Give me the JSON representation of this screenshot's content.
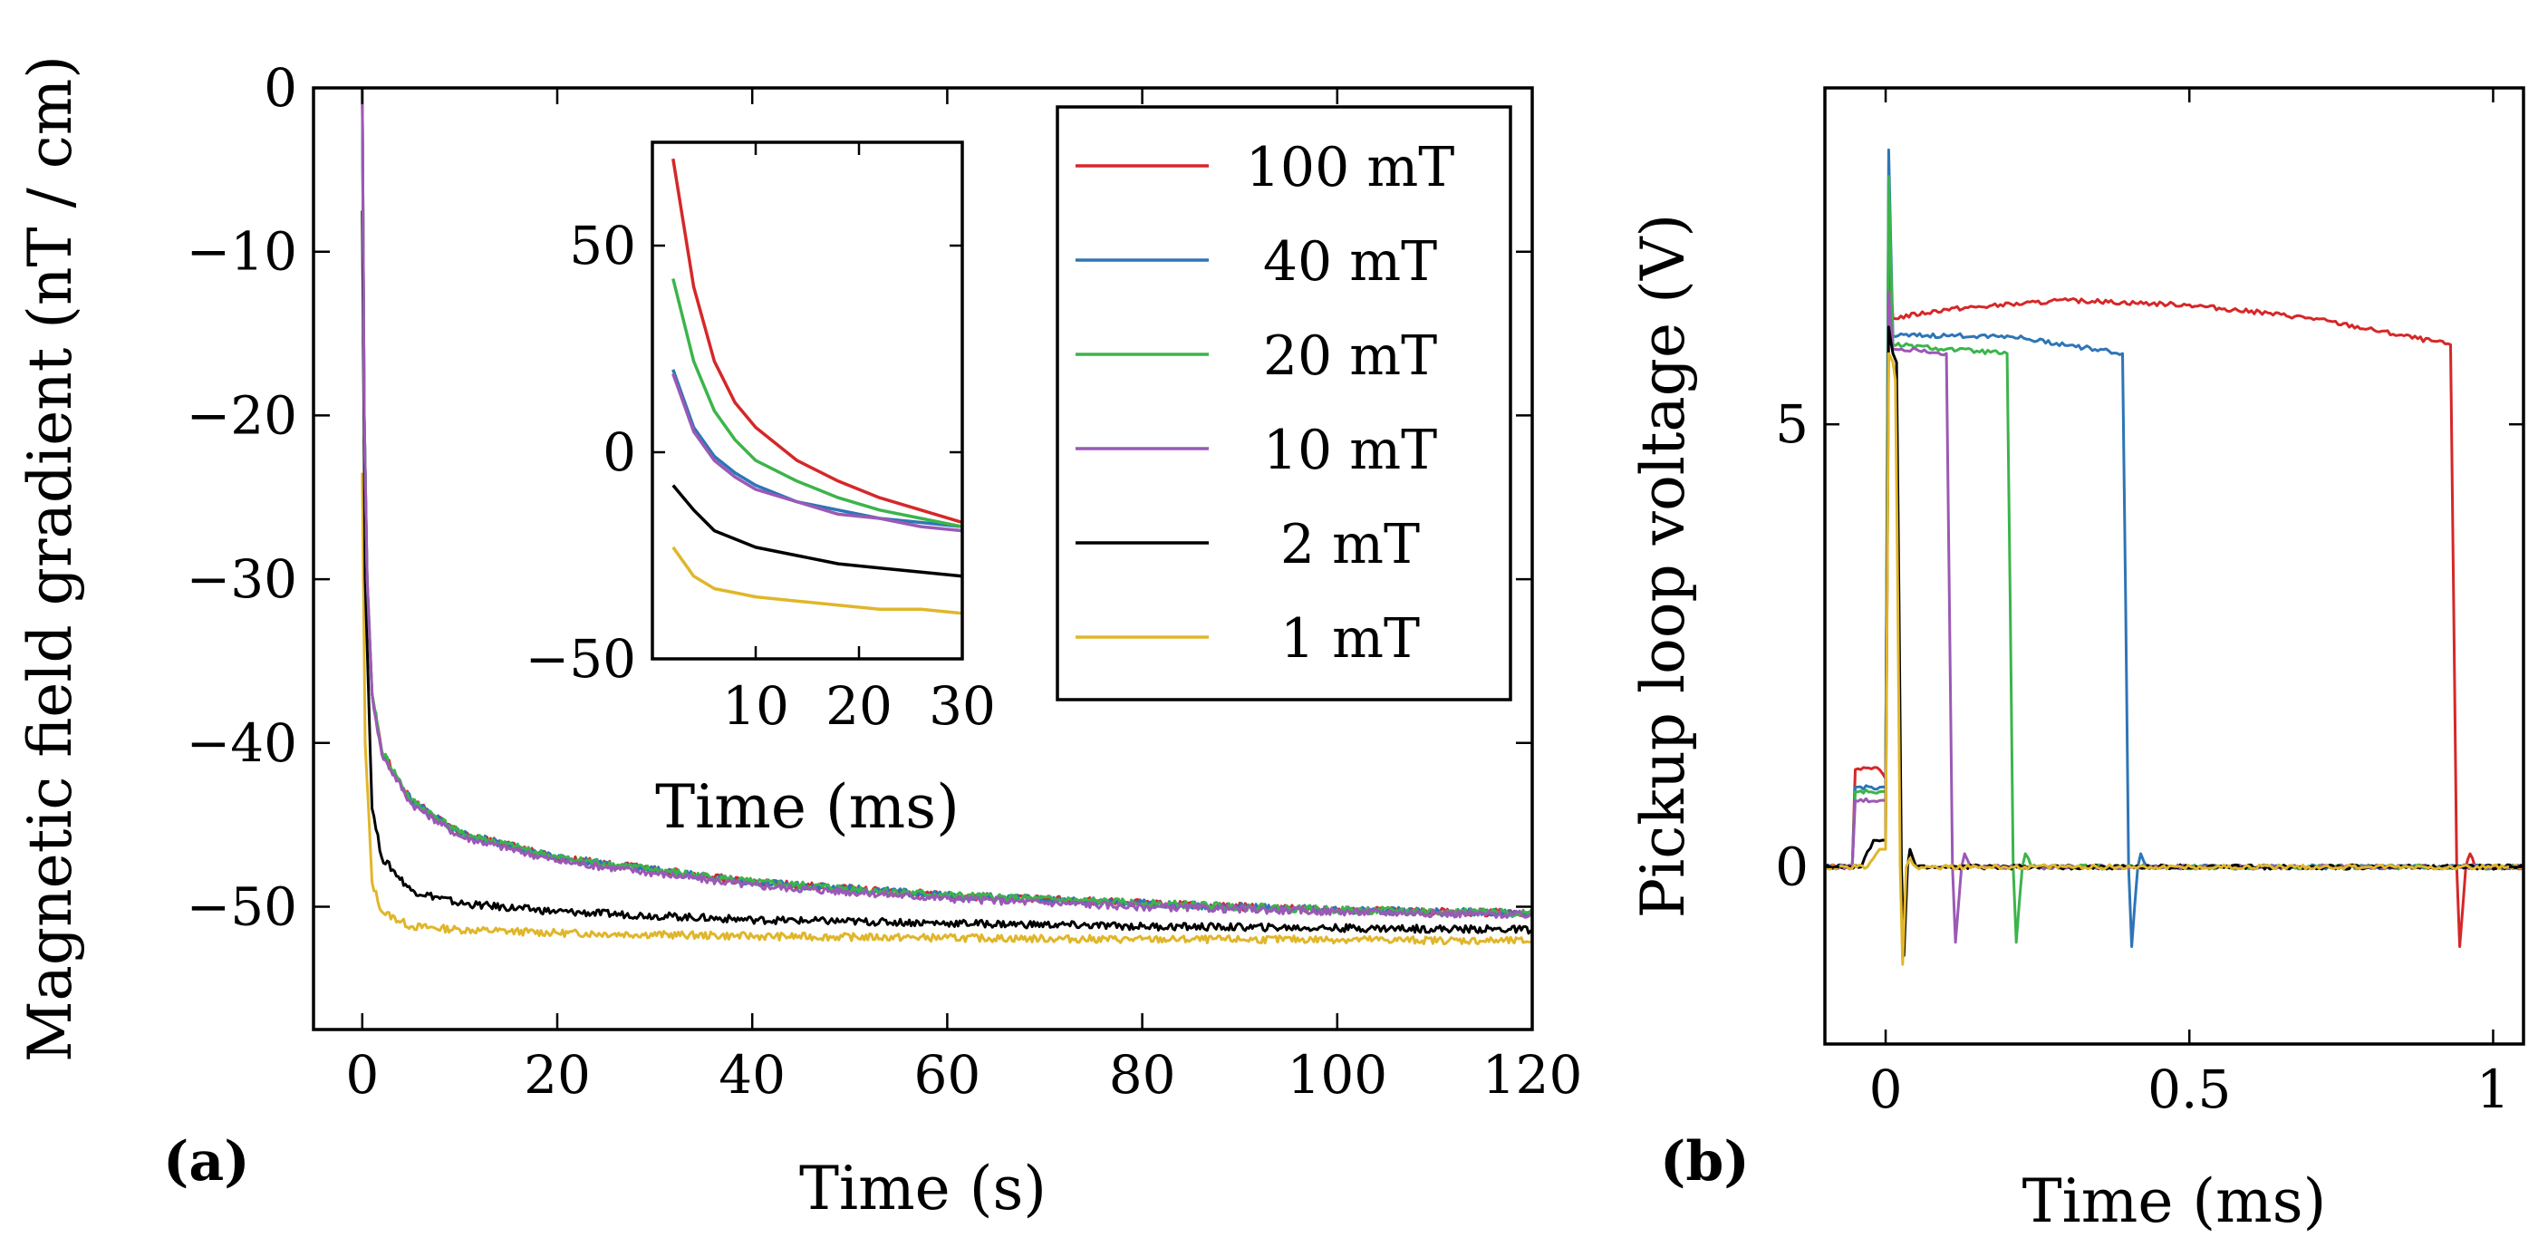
{
  "colors": {
    "100 mT": "#d62728",
    "40 mT": "#2e75b6",
    "20 mT": "#3cb44b",
    "10 mT": "#9b59b6",
    "2 mT": "#000000",
    "1 mT": "#e0b62a"
  },
  "chart_data": [
    {
      "panel_label": "(a)",
      "type": "line",
      "xlabel": "Time (s)",
      "ylabel": "Magnetic field gradient (nT / cm)",
      "xlim": [
        -5,
        120
      ],
      "ylim": [
        -57.5,
        0
      ],
      "xticks": [
        0,
        20,
        40,
        60,
        80,
        100,
        120
      ],
      "yticks": [
        0,
        -10,
        -20,
        -30,
        -40,
        -50
      ],
      "ytick_labels": [
        "0",
        "−10",
        "−20",
        "−30",
        "−40",
        "−50"
      ],
      "legend_position": "top-right",
      "series": [
        {
          "name": "100 mT",
          "points": [
            [
              0,
              0
            ],
            [
              0.2,
              -20
            ],
            [
              0.5,
              -30
            ],
            [
              1,
              -37
            ],
            [
              2,
              -40.5
            ],
            [
              5,
              -43.5
            ],
            [
              10,
              -45.5
            ],
            [
              20,
              -47
            ],
            [
              40,
              -48.5
            ],
            [
              60,
              -49.3
            ],
            [
              80,
              -49.8
            ],
            [
              100,
              -50.2
            ],
            [
              120,
              -50.4
            ]
          ]
        },
        {
          "name": "40 mT",
          "points": [
            [
              0,
              0
            ],
            [
              0.2,
              -20
            ],
            [
              0.5,
              -30
            ],
            [
              1,
              -37
            ],
            [
              2,
              -40.5
            ],
            [
              5,
              -43.5
            ],
            [
              10,
              -45.5
            ],
            [
              20,
              -47
            ],
            [
              40,
              -48.5
            ],
            [
              60,
              -49.3
            ],
            [
              80,
              -49.8
            ],
            [
              100,
              -50.2
            ],
            [
              120,
              -50.4
            ]
          ]
        },
        {
          "name": "20 mT",
          "points": [
            [
              0,
              0
            ],
            [
              0.2,
              -20
            ],
            [
              0.5,
              -30
            ],
            [
              1,
              -37
            ],
            [
              2,
              -40.5
            ],
            [
              5,
              -43.5
            ],
            [
              10,
              -45.5
            ],
            [
              20,
              -47
            ],
            [
              40,
              -48.5
            ],
            [
              60,
              -49.3
            ],
            [
              80,
              -49.8
            ],
            [
              100,
              -50.2
            ],
            [
              120,
              -50.4
            ]
          ]
        },
        {
          "name": "10 mT",
          "points": [
            [
              0,
              0
            ],
            [
              0.2,
              -20
            ],
            [
              0.5,
              -30
            ],
            [
              1,
              -37
            ],
            [
              2,
              -40.7
            ],
            [
              5,
              -43.7
            ],
            [
              10,
              -45.7
            ],
            [
              20,
              -47.2
            ],
            [
              40,
              -48.7
            ],
            [
              60,
              -49.5
            ],
            [
              80,
              -50
            ],
            [
              100,
              -50.3
            ],
            [
              120,
              -50.5
            ]
          ]
        },
        {
          "name": "2 mT",
          "points": [
            [
              0,
              -7.5
            ],
            [
              0.3,
              -30
            ],
            [
              1,
              -44
            ],
            [
              2,
              -47
            ],
            [
              5,
              -49
            ],
            [
              10,
              -49.8
            ],
            [
              20,
              -50.3
            ],
            [
              40,
              -50.8
            ],
            [
              60,
              -51
            ],
            [
              80,
              -51.2
            ],
            [
              100,
              -51.3
            ],
            [
              120,
              -51.4
            ]
          ]
        },
        {
          "name": "1 mT",
          "points": [
            [
              0,
              -23.5
            ],
            [
              0.3,
              -40
            ],
            [
              1,
              -48.5
            ],
            [
              2,
              -50.3
            ],
            [
              5,
              -51.2
            ],
            [
              10,
              -51.4
            ],
            [
              20,
              -51.6
            ],
            [
              40,
              -51.8
            ],
            [
              60,
              -51.9
            ],
            [
              80,
              -52
            ],
            [
              100,
              -52
            ],
            [
              120,
              -52.1
            ]
          ]
        }
      ]
    },
    {
      "panel_label": "inset",
      "type": "line",
      "xlabel": "Time (ms)",
      "ylabel": "",
      "xlim": [
        0,
        30
      ],
      "ylim": [
        -50,
        75
      ],
      "xticks": [
        10,
        20,
        30
      ],
      "yticks": [
        50,
        0,
        -50
      ],
      "ytick_labels": [
        "50",
        "0",
        "−50"
      ],
      "series": [
        {
          "name": "100 mT",
          "points": [
            [
              2,
              71
            ],
            [
              4,
              40
            ],
            [
              6,
              22
            ],
            [
              8,
              12
            ],
            [
              10,
              6
            ],
            [
              14,
              -2
            ],
            [
              18,
              -7
            ],
            [
              22,
              -11
            ],
            [
              26,
              -14
            ],
            [
              30,
              -17
            ]
          ]
        },
        {
          "name": "40 mT",
          "points": [
            [
              2,
              20
            ],
            [
              4,
              6
            ],
            [
              6,
              -1
            ],
            [
              8,
              -5
            ],
            [
              10,
              -8
            ],
            [
              14,
              -12
            ],
            [
              18,
              -14
            ],
            [
              22,
              -16
            ],
            [
              26,
              -17
            ],
            [
              30,
              -18
            ]
          ]
        },
        {
          "name": "20 mT",
          "points": [
            [
              2,
              42
            ],
            [
              4,
              22
            ],
            [
              6,
              10
            ],
            [
              8,
              3
            ],
            [
              10,
              -2
            ],
            [
              14,
              -7
            ],
            [
              18,
              -11
            ],
            [
              22,
              -14
            ],
            [
              26,
              -16
            ],
            [
              30,
              -18
            ]
          ]
        },
        {
          "name": "10 mT",
          "points": [
            [
              2,
              19
            ],
            [
              4,
              5
            ],
            [
              6,
              -2
            ],
            [
              8,
              -6
            ],
            [
              10,
              -9
            ],
            [
              14,
              -12
            ],
            [
              18,
              -15
            ],
            [
              22,
              -16
            ],
            [
              26,
              -18
            ],
            [
              30,
              -19
            ]
          ]
        },
        {
          "name": "2 mT",
          "points": [
            [
              2,
              -8
            ],
            [
              4,
              -14
            ],
            [
              6,
              -19
            ],
            [
              8,
              -21
            ],
            [
              10,
              -23
            ],
            [
              14,
              -25
            ],
            [
              18,
              -27
            ],
            [
              22,
              -28
            ],
            [
              26,
              -29
            ],
            [
              30,
              -30
            ]
          ]
        },
        {
          "name": "1 mT",
          "points": [
            [
              2,
              -23
            ],
            [
              4,
              -30
            ],
            [
              6,
              -33
            ],
            [
              8,
              -34
            ],
            [
              10,
              -35
            ],
            [
              14,
              -36
            ],
            [
              18,
              -37
            ],
            [
              22,
              -38
            ],
            [
              26,
              -38
            ],
            [
              30,
              -39
            ]
          ]
        }
      ]
    },
    {
      "panel_label": "(b)",
      "type": "line",
      "xlabel": "Time (ms)",
      "ylabel": "Pickup loop voltage (V)",
      "xlim": [
        -0.1,
        1.05
      ],
      "ylim": [
        -2,
        8.8
      ],
      "xticks": [
        0,
        0.5,
        1
      ],
      "yticks": [
        0,
        5
      ],
      "ytick_labels": [
        "0",
        "5"
      ],
      "series": [
        {
          "name": "100 mT",
          "points": [
            [
              -0.1,
              0
            ],
            [
              -0.055,
              0
            ],
            [
              -0.05,
              1.1
            ],
            [
              -0.01,
              1.1
            ],
            [
              0,
              1.0
            ],
            [
              0.005,
              7
            ],
            [
              0.012,
              6.2
            ],
            [
              0.1,
              6.3
            ],
            [
              0.3,
              6.4
            ],
            [
              0.5,
              6.35
            ],
            [
              0.7,
              6.2
            ],
            [
              0.93,
              5.9
            ],
            [
              0.935,
              3
            ],
            [
              0.94,
              0
            ],
            [
              0.945,
              -0.9
            ],
            [
              0.955,
              0
            ],
            [
              0.962,
              0.15
            ],
            [
              0.97,
              0
            ],
            [
              1.05,
              0
            ]
          ]
        },
        {
          "name": "40 mT",
          "points": [
            [
              -0.1,
              0
            ],
            [
              -0.055,
              0
            ],
            [
              -0.05,
              0.9
            ],
            [
              -0.01,
              0.9
            ],
            [
              0,
              0.9
            ],
            [
              0.005,
              8.1
            ],
            [
              0.012,
              6.0
            ],
            [
              0.1,
              6.0
            ],
            [
              0.2,
              6.0
            ],
            [
              0.39,
              5.8
            ],
            [
              0.395,
              3
            ],
            [
              0.4,
              0
            ],
            [
              0.405,
              -0.9
            ],
            [
              0.415,
              0
            ],
            [
              0.42,
              0.15
            ],
            [
              0.43,
              0
            ],
            [
              1.05,
              0
            ]
          ]
        },
        {
          "name": "20 mT",
          "points": [
            [
              -0.1,
              0
            ],
            [
              -0.055,
              0
            ],
            [
              -0.05,
              0.85
            ],
            [
              -0.01,
              0.85
            ],
            [
              0,
              0.85
            ],
            [
              0.005,
              7.8
            ],
            [
              0.012,
              5.9
            ],
            [
              0.1,
              5.85
            ],
            [
              0.2,
              5.8
            ],
            [
              0.205,
              3
            ],
            [
              0.21,
              0
            ],
            [
              0.215,
              -0.85
            ],
            [
              0.225,
              0
            ],
            [
              0.23,
              0.15
            ],
            [
              0.24,
              0
            ],
            [
              1.05,
              0
            ]
          ]
        },
        {
          "name": "10 mT",
          "points": [
            [
              -0.1,
              0
            ],
            [
              -0.055,
              0
            ],
            [
              -0.05,
              0.75
            ],
            [
              -0.01,
              0.75
            ],
            [
              0,
              0.75
            ],
            [
              0.005,
              6.5
            ],
            [
              0.012,
              5.85
            ],
            [
              0.05,
              5.85
            ],
            [
              0.1,
              5.8
            ],
            [
              0.105,
              3
            ],
            [
              0.11,
              0
            ],
            [
              0.115,
              -0.85
            ],
            [
              0.125,
              0
            ],
            [
              0.13,
              0.15
            ],
            [
              0.14,
              0
            ],
            [
              1.05,
              0
            ]
          ]
        },
        {
          "name": "2 mT",
          "points": [
            [
              -0.1,
              0
            ],
            [
              -0.04,
              0
            ],
            [
              -0.02,
              0.3
            ],
            [
              0,
              0.3
            ],
            [
              0.005,
              6.1
            ],
            [
              0.012,
              5.8
            ],
            [
              0.018,
              5.7
            ],
            [
              0.022,
              3
            ],
            [
              0.026,
              0
            ],
            [
              0.03,
              -1
            ],
            [
              0.036,
              0
            ],
            [
              0.04,
              0.2
            ],
            [
              0.05,
              0
            ],
            [
              1.05,
              0
            ]
          ]
        },
        {
          "name": "1 mT",
          "points": [
            [
              -0.1,
              0
            ],
            [
              -0.03,
              0
            ],
            [
              -0.01,
              0.2
            ],
            [
              0,
              0.2
            ],
            [
              0.005,
              5.8
            ],
            [
              0.012,
              5.7
            ],
            [
              0.016,
              5.5
            ],
            [
              0.02,
              3
            ],
            [
              0.024,
              0
            ],
            [
              0.028,
              -1.1
            ],
            [
              0.034,
              0
            ],
            [
              0.04,
              0.1
            ],
            [
              0.05,
              0
            ],
            [
              1.05,
              0
            ]
          ]
        }
      ]
    }
  ]
}
